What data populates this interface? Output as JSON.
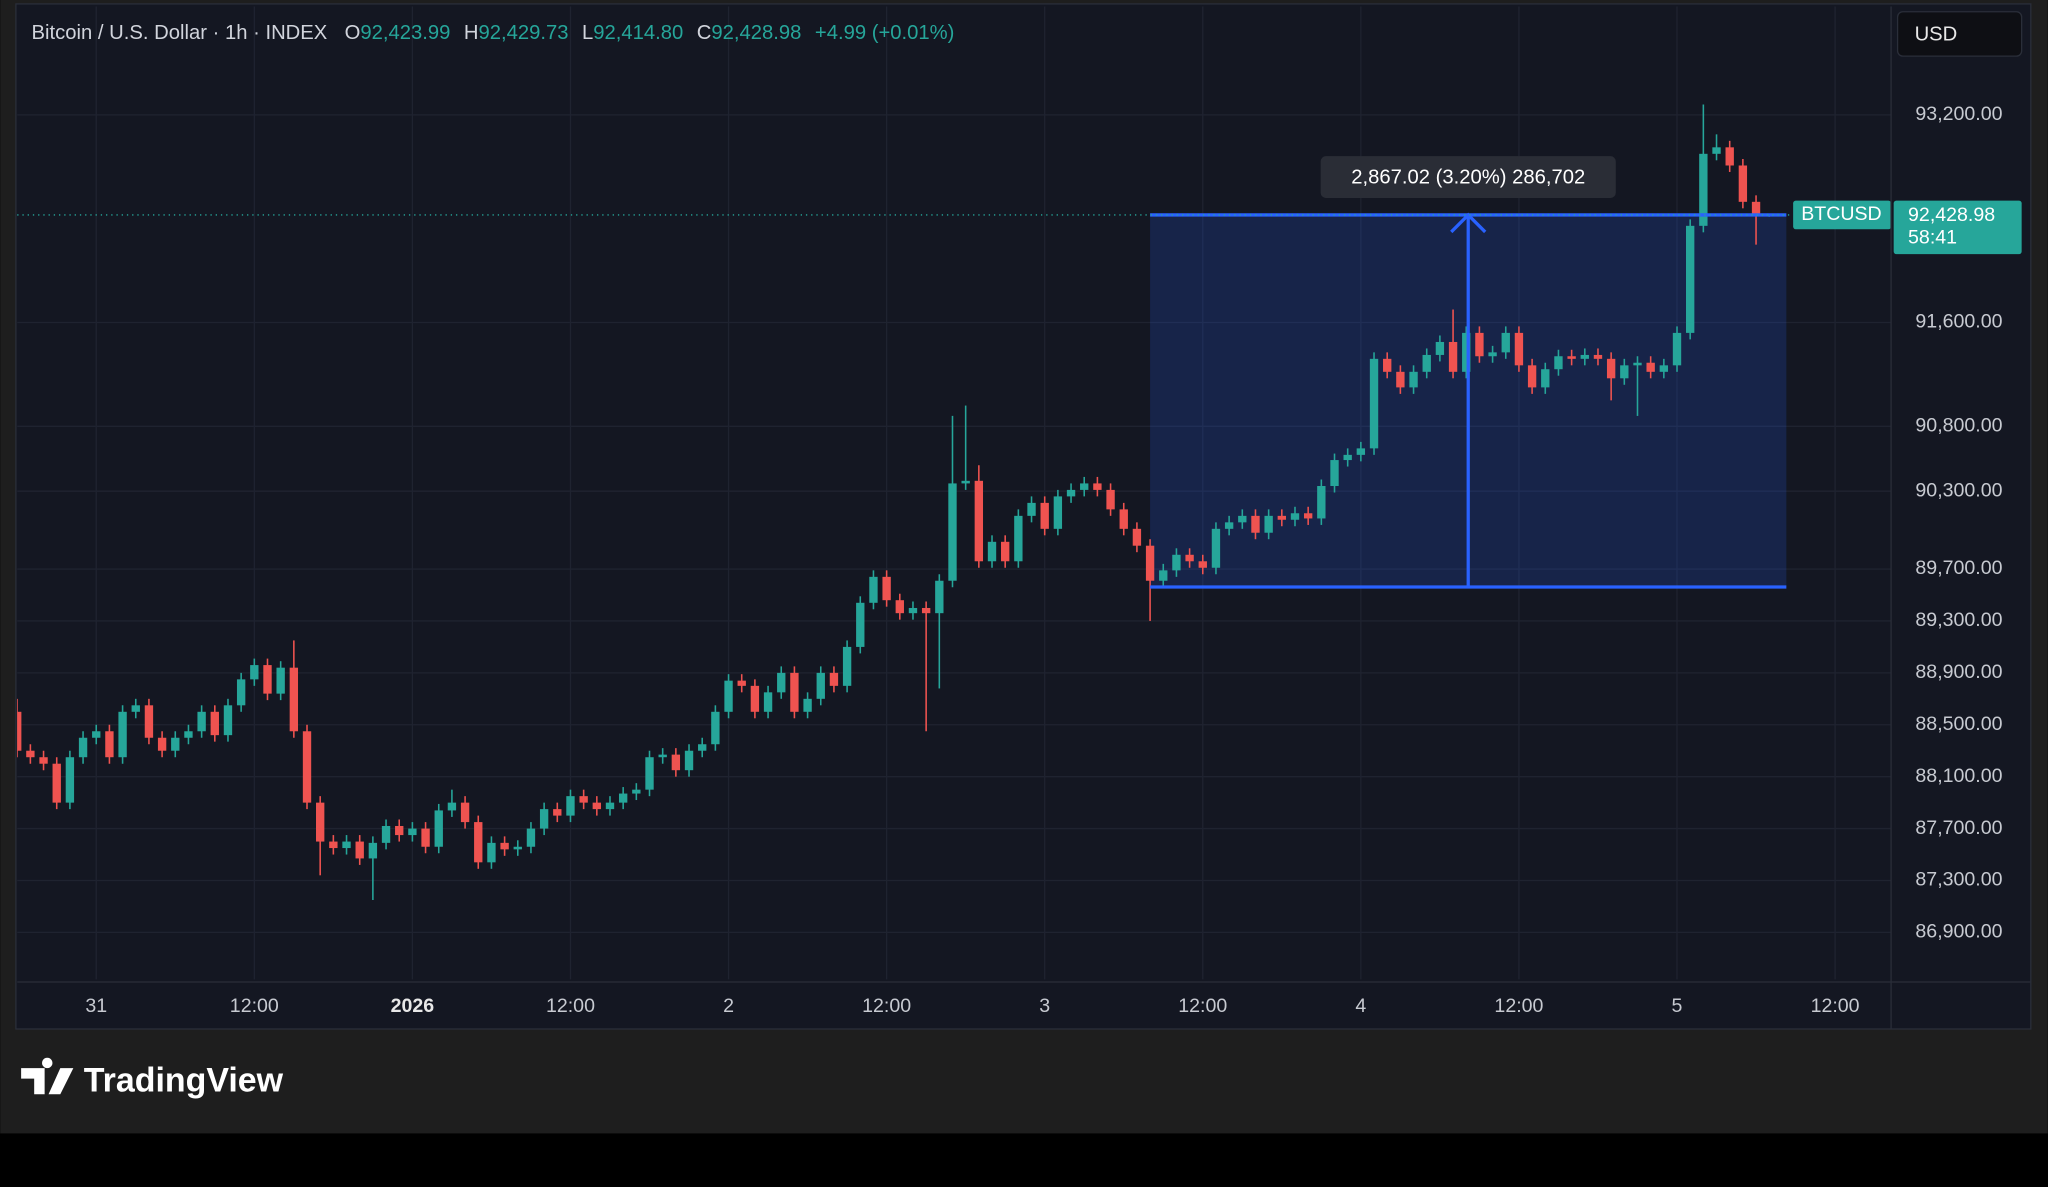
{
  "header": {
    "symbol_title": "Bitcoin / U.S. Dollar · 1h · INDEX",
    "ohlc": [
      {
        "key": "O",
        "value": "92,423.99"
      },
      {
        "key": "H",
        "value": "92,429.73"
      },
      {
        "key": "L",
        "value": "92,414.80"
      },
      {
        "key": "C",
        "value": "92,428.98"
      }
    ],
    "change": "+4.99 (+0.01%)",
    "currency_button": "USD"
  },
  "chart_data": {
    "type": "candlestick",
    "up_color": "#26a69a",
    "down_color": "#ef5350",
    "grid": true,
    "xlim": [
      -6,
      136.25
    ],
    "xticks": [
      {
        "value": 0,
        "label": "31"
      },
      {
        "value": 12,
        "label": "12:00"
      },
      {
        "value": 24,
        "label": "2026"
      },
      {
        "value": 36,
        "label": "12:00"
      },
      {
        "value": 48,
        "label": "2"
      },
      {
        "value": 60,
        "label": "12:00"
      },
      {
        "value": 72,
        "label": "3"
      },
      {
        "value": 84,
        "label": "12:00"
      },
      {
        "value": 96,
        "label": "4"
      },
      {
        "value": 108,
        "label": "12:00"
      },
      {
        "value": 120,
        "label": "5"
      },
      {
        "value": 132,
        "label": "12:00"
      }
    ],
    "ylim": [
      86538,
      94035
    ],
    "yticks": [
      {
        "value": 93200,
        "label": "93,200.00"
      },
      {
        "value": 91600,
        "label": "91,600.00"
      },
      {
        "value": 90800,
        "label": "90,800.00"
      },
      {
        "value": 90300,
        "label": "90,300.00"
      },
      {
        "value": 89700,
        "label": "89,700.00"
      },
      {
        "value": 89300,
        "label": "89,300.00"
      },
      {
        "value": 88900,
        "label": "88,900.00"
      },
      {
        "value": 88500,
        "label": "88,500.00"
      },
      {
        "value": 88100,
        "label": "88,100.00"
      },
      {
        "value": 87700,
        "label": "87,700.00"
      },
      {
        "value": 87300,
        "label": "87,300.00"
      },
      {
        "value": 86900,
        "label": "86,900.00"
      }
    ],
    "x": [
      -6,
      -5,
      -4,
      -3,
      -2,
      -1,
      0,
      1,
      2,
      3,
      4,
      5,
      6,
      7,
      8,
      9,
      10,
      11,
      12,
      13,
      14,
      15,
      16,
      17,
      18,
      19,
      20,
      21,
      22,
      23,
      24,
      25,
      26,
      27,
      28,
      29,
      30,
      31,
      32,
      33,
      34,
      35,
      36,
      37,
      38,
      39,
      40,
      41,
      42,
      43,
      44,
      45,
      46,
      47,
      48,
      49,
      50,
      51,
      52,
      53,
      54,
      55,
      56,
      57,
      58,
      59,
      60,
      61,
      62,
      63,
      64,
      65,
      66,
      67,
      68,
      69,
      70,
      71,
      72,
      73,
      74,
      75,
      76,
      77,
      78,
      79,
      80,
      81,
      82,
      83,
      84,
      85,
      86,
      87,
      88,
      89,
      90,
      91,
      92,
      93,
      94,
      95,
      96,
      97,
      98,
      99,
      100,
      101,
      102,
      103,
      104,
      105,
      106,
      107,
      108,
      109,
      110,
      111,
      112,
      113,
      114,
      115,
      116,
      117,
      118,
      119,
      120,
      121,
      122,
      123,
      124,
      125,
      126,
      127
    ],
    "open": [
      88600,
      88300,
      88250,
      88200,
      87900,
      88250,
      88400,
      88450,
      88250,
      88600,
      88650,
      88400,
      88300,
      88400,
      88450,
      88600,
      88420,
      88650,
      88850,
      88960,
      88740,
      88940,
      88450,
      87900,
      87600,
      87550,
      87600,
      87470,
      87590,
      87720,
      87650,
      87700,
      87560,
      87840,
      87900,
      87750,
      87440,
      87590,
      87540,
      87560,
      87700,
      87850,
      87800,
      87950,
      87900,
      87850,
      87900,
      87970,
      88000,
      88250,
      88270,
      88150,
      88300,
      88350,
      88600,
      88840,
      88800,
      88600,
      88750,
      88900,
      88600,
      88700,
      88900,
      88800,
      89100,
      89440,
      89640,
      89460,
      89360,
      89400,
      89360,
      89610,
      90360,
      90380,
      89760,
      89910,
      89760,
      90110,
      90210,
      90010,
      90260,
      90310,
      90360,
      90310,
      90160,
      90010,
      89880,
      89610,
      89690,
      89810,
      89760,
      89710,
      90010,
      90060,
      90110,
      89980,
      90110,
      90080,
      90130,
      90090,
      90340,
      90540,
      90580,
      90630,
      91320,
      91220,
      91100,
      91220,
      91350,
      91450,
      91220,
      91520,
      91340,
      91370,
      91520,
      91270,
      91100,
      91240,
      91340,
      91320,
      91350,
      91320,
      91170,
      91270,
      91290,
      91220,
      91270,
      91520,
      92345,
      92900,
      92950,
      92810,
      92530,
      92423.99
    ],
    "high": [
      88700,
      88350,
      88300,
      88250,
      88300,
      88450,
      88500,
      88500,
      88650,
      88700,
      88700,
      88450,
      88450,
      88500,
      88650,
      88650,
      88700,
      88900,
      89010,
      89010,
      88990,
      89150,
      88500,
      87950,
      87650,
      87650,
      87650,
      87640,
      87770,
      87770,
      87750,
      87750,
      87890,
      88000,
      87950,
      87800,
      87640,
      87640,
      87610,
      87750,
      87900,
      87900,
      88000,
      88000,
      87950,
      87950,
      88020,
      88050,
      88300,
      88320,
      88320,
      88350,
      88400,
      88650,
      88890,
      88890,
      88850,
      88800,
      88950,
      88950,
      88750,
      88950,
      88950,
      89150,
      89490,
      89690,
      89690,
      89510,
      89450,
      89450,
      89660,
      90880,
      90960,
      90500,
      89960,
      89960,
      90160,
      90260,
      90260,
      90310,
      90360,
      90410,
      90410,
      90360,
      90210,
      90060,
      89930,
      89740,
      89860,
      89860,
      89810,
      90060,
      90110,
      90160,
      90160,
      90160,
      90160,
      90180,
      90180,
      90390,
      90590,
      90630,
      90680,
      91370,
      91370,
      91270,
      91270,
      91400,
      91500,
      91700,
      91570,
      91570,
      91420,
      91570,
      91570,
      91320,
      91290,
      91390,
      91390,
      91400,
      91400,
      91370,
      91320,
      91340,
      91340,
      91320,
      91570,
      92395,
      93280,
      93050,
      93000,
      92860,
      92580,
      92429.73
    ],
    "low": [
      88250,
      88200,
      88150,
      87850,
      87850,
      88200,
      88350,
      88200,
      88200,
      88550,
      88350,
      88250,
      88250,
      88350,
      88400,
      88370,
      88370,
      88600,
      88800,
      88690,
      88690,
      88400,
      87850,
      87340,
      87500,
      87500,
      87420,
      87150,
      87540,
      87600,
      87600,
      87510,
      87510,
      87790,
      87700,
      87390,
      87390,
      87490,
      87490,
      87510,
      87650,
      87750,
      87750,
      87850,
      87800,
      87800,
      87850,
      87920,
      87950,
      88200,
      88100,
      88100,
      88250,
      88300,
      88550,
      88750,
      88550,
      88550,
      88700,
      88550,
      88550,
      88650,
      88750,
      88750,
      89050,
      89390,
      89410,
      89310,
      89310,
      88450,
      88780,
      89560,
      90310,
      89710,
      89710,
      89710,
      89710,
      90060,
      89960,
      89960,
      90210,
      90260,
      90260,
      90110,
      89960,
      89830,
      89300,
      89560,
      89640,
      89710,
      89660,
      89660,
      89960,
      90010,
      89930,
      89930,
      90030,
      90030,
      90040,
      90040,
      90290,
      90490,
      90530,
      90580,
      91170,
      91050,
      91050,
      91170,
      91300,
      91170,
      91170,
      91290,
      91290,
      91320,
      91220,
      91050,
      91050,
      91190,
      91270,
      91270,
      91270,
      91000,
      91120,
      90880,
      91170,
      91170,
      91220,
      91470,
      92295,
      92850,
      92760,
      92480,
      92200,
      92414.8
    ],
    "close": [
      88300,
      88250,
      88200,
      87900,
      88250,
      88400,
      88450,
      88250,
      88600,
      88650,
      88400,
      88300,
      88400,
      88450,
      88600,
      88420,
      88650,
      88850,
      88960,
      88740,
      88940,
      88450,
      87900,
      87600,
      87550,
      87600,
      87470,
      87590,
      87720,
      87650,
      87700,
      87560,
      87840,
      87900,
      87750,
      87440,
      87590,
      87540,
      87560,
      87700,
      87850,
      87800,
      87950,
      87900,
      87850,
      87900,
      87970,
      88000,
      88250,
      88270,
      88150,
      88300,
      88350,
      88600,
      88840,
      88800,
      88600,
      88750,
      88900,
      88600,
      88700,
      88900,
      88800,
      89100,
      89440,
      89640,
      89460,
      89360,
      89400,
      89360,
      89610,
      90360,
      90380,
      89760,
      89910,
      89760,
      90110,
      90210,
      90010,
      90260,
      90310,
      90360,
      90310,
      90160,
      90010,
      89880,
      89610,
      89690,
      89810,
      89760,
      89710,
      90010,
      90060,
      90110,
      89980,
      90110,
      90080,
      90130,
      90090,
      90340,
      90540,
      90580,
      90630,
      91320,
      91220,
      91100,
      91220,
      91350,
      91450,
      91220,
      91520,
      91340,
      91370,
      91520,
      91270,
      91100,
      91240,
      91340,
      91320,
      91350,
      91320,
      91170,
      91270,
      91290,
      91220,
      91270,
      91520,
      92345,
      92900,
      92950,
      92810,
      92530,
      92423.99,
      92428.98
    ],
    "measure": {
      "label": "2,867.02 (3.20%) 286,702",
      "x_range": [
        80,
        128.3
      ],
      "y_range": [
        89561.96,
        92428.98
      ],
      "color": "#2962ff"
    },
    "last_price": {
      "symbol": "BTCUSD",
      "label": "92,428.98",
      "countdown": "58:41"
    }
  },
  "footer": {
    "brand": "TradingView"
  }
}
